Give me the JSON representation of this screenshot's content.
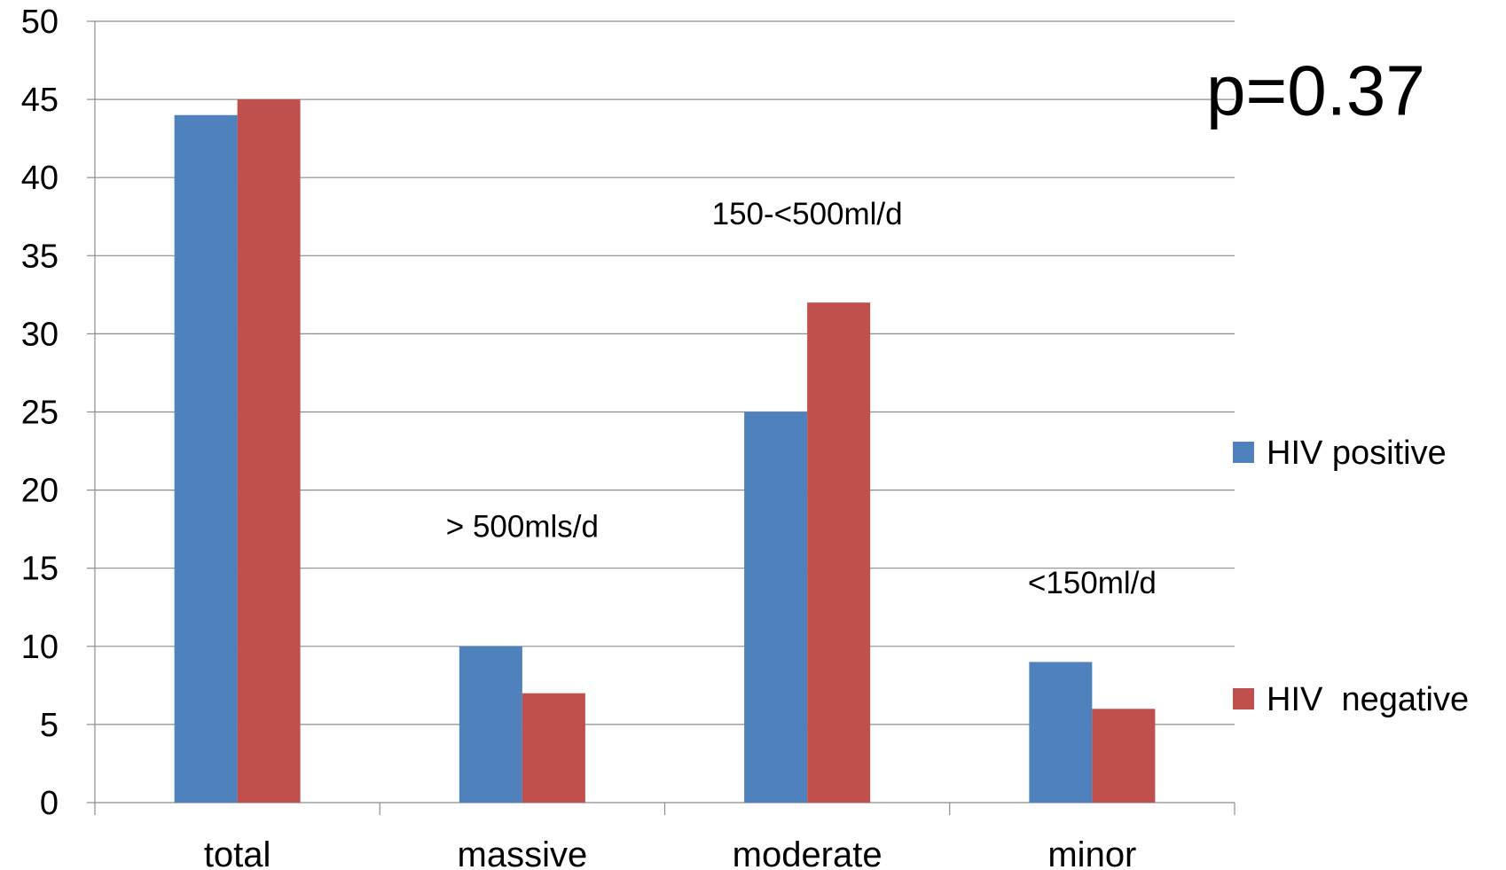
{
  "chart_data": {
    "type": "bar",
    "categories": [
      "total",
      "massive",
      "moderate",
      "minor"
    ],
    "series": [
      {
        "name": "HIV positive",
        "values": [
          44,
          10,
          25,
          9
        ],
        "color": "#4F81BD"
      },
      {
        "name": "HIV  negative",
        "values": [
          45,
          7,
          32,
          6
        ],
        "color": "#C0504D"
      }
    ],
    "ylim": [
      0,
      50
    ],
    "yticks": [
      0,
      5,
      10,
      15,
      20,
      25,
      30,
      35,
      40,
      45,
      50
    ],
    "grid": true,
    "legend_position": "right",
    "annotations": [
      {
        "text": "> 500mls/d",
        "category": "massive",
        "y": 17
      },
      {
        "text": "150-<500ml/d",
        "category": "moderate",
        "y": 37
      },
      {
        "text": "<150ml/d",
        "category": "minor",
        "y": 13.4
      },
      {
        "text": "p=0.37",
        "category": "",
        "y": 44
      }
    ]
  }
}
